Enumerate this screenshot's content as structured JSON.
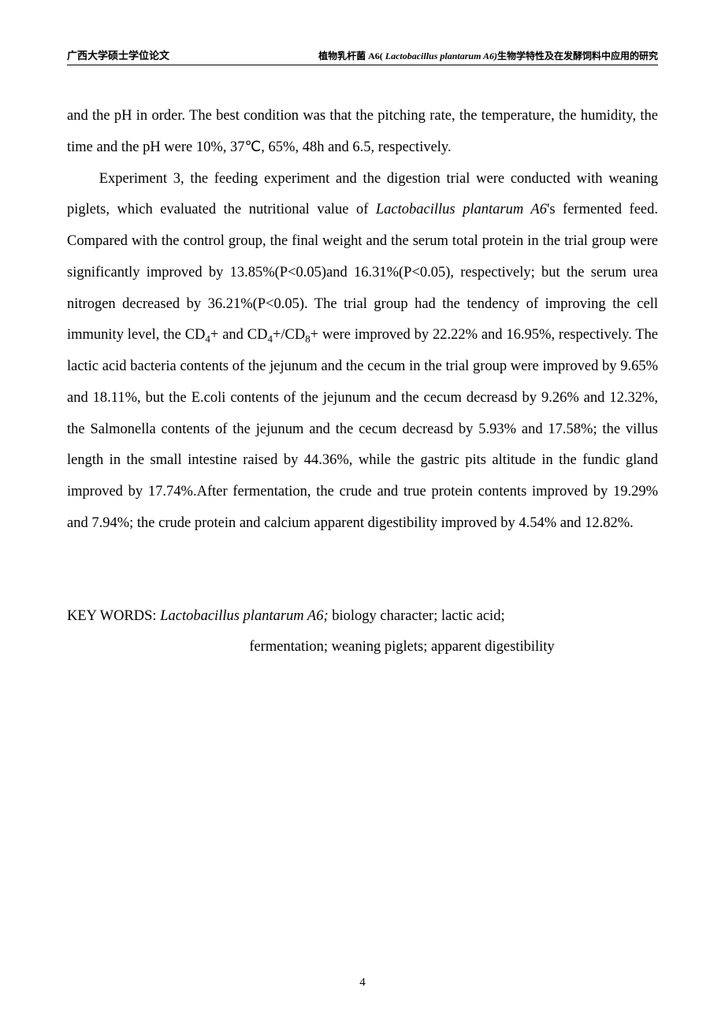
{
  "header": {
    "left": "广西大学硕士学位论文",
    "right_prefix": "植物乳杆菌 A6( ",
    "right_italic": "Lactobacillus plantarum A6)",
    "right_suffix": "生物学特性及在发酵饲料中应用的研究"
  },
  "paragraph1": {
    "text": "and the pH in order. The best condition was that the pitching rate, the temperature, the humidity, the time and the pH were 10%, 37℃, 65%, 48h and 6.5, respectively."
  },
  "paragraph2": {
    "part1": "Experiment 3, the feeding experiment and the digestion trial were conducted with weaning piglets, which evaluated the nutritional value of ",
    "italic1": "Lactobacillus plantarum A6",
    "part2": "'s fermented feed. Compared with the control group, the final weight and the serum total protein in the trial group were significantly improved by 13.85%(P<0.05)and 16.31%(P<0.05), respectively; but the serum urea nitrogen decreased by 36.21%(P<0.05). The trial group had the tendency of improving the cell immunity level, the CD",
    "sub1": "4",
    "part3": "+ and CD",
    "sub2": "4",
    "part4": "+/CD",
    "sub3": "8",
    "part5": "+ were improved by 22.22% and 16.95%, respectively. The lactic acid bacteria contents of the jejunum and the cecum in the trial group were improved by 9.65% and 18.11%, but the E.coli contents of the jejunum and the cecum decreasd by 9.26% and 12.32%, the Salmonella contents of the jejunum and the cecum decreasd by 5.93% and 17.58%; the villus length in the small intestine raised by 44.36%, while the gastric pits altitude in the fundic gland improved by 17.74%.After fermentation, the crude and true protein contents improved by 19.29% and 7.94%; the crude protein and calcium apparent digestibility improved by 4.54% and 12.82%."
  },
  "keywords": {
    "label": "KEY WORDS: ",
    "italic": "Lactobacillus plantarum A6; ",
    "line1_rest": "biology character; lactic acid;",
    "line2": "fermentation; weaning piglets; apparent digestibility"
  },
  "pageNumber": "4"
}
